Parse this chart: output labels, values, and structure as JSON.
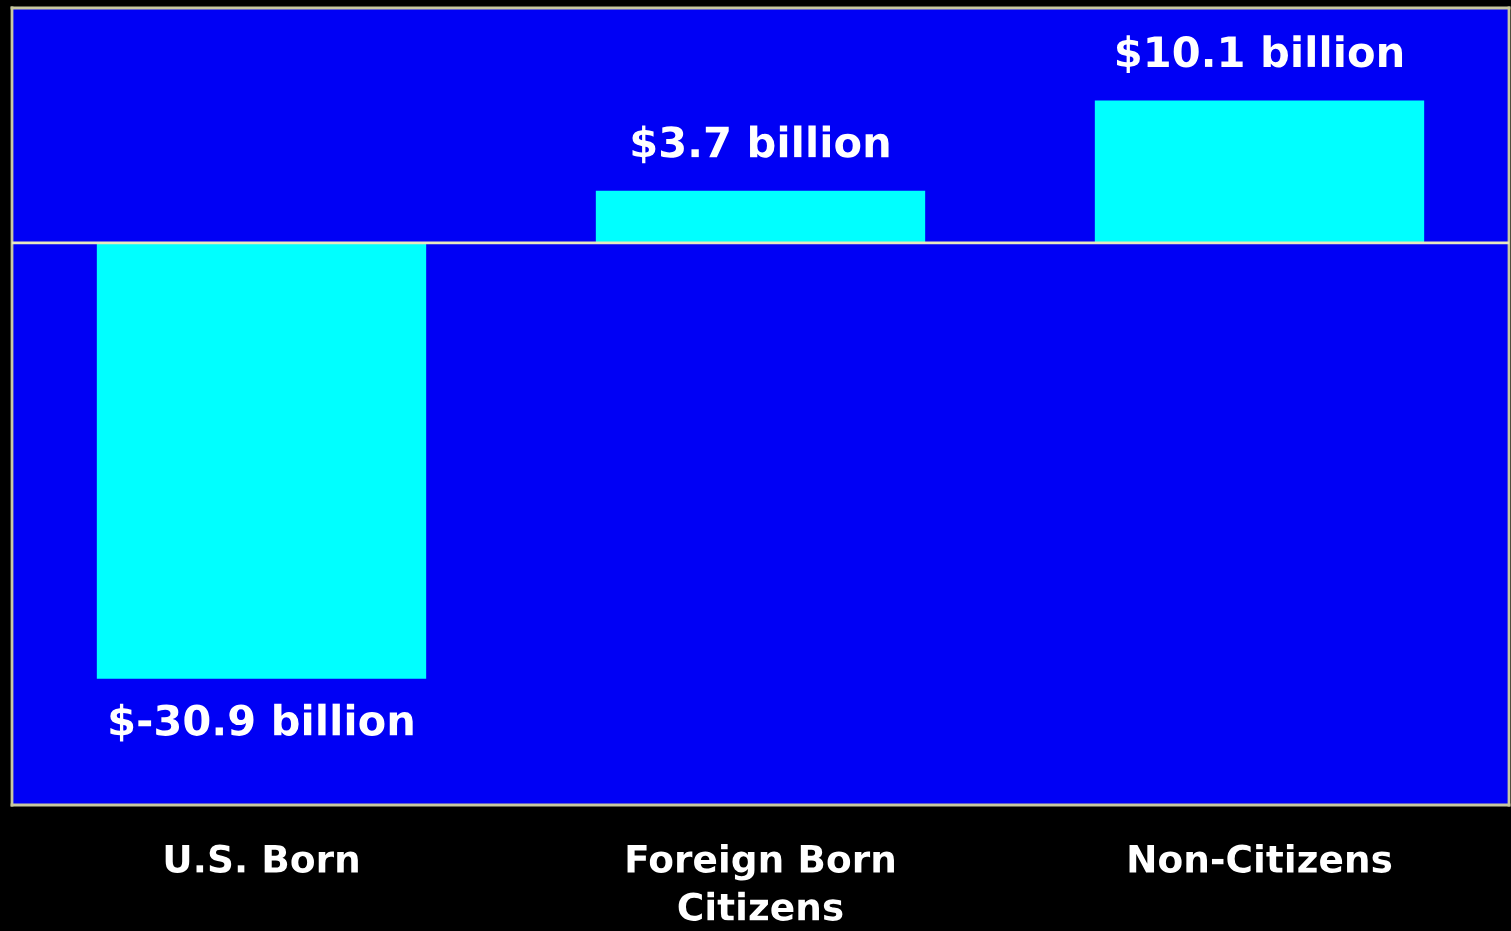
{
  "chart_data": {
    "type": "bar",
    "categories": [
      "U.S. Born",
      "Foreign Born\nCitizens",
      "Non-Citizens"
    ],
    "values": [
      -30.9,
      3.7,
      10.1
    ],
    "value_labels": [
      "$-30.9 billion",
      "$3.7 billion",
      "$10.1 billion"
    ],
    "color": "#00ffff",
    "grid": false,
    "legend": false
  }
}
